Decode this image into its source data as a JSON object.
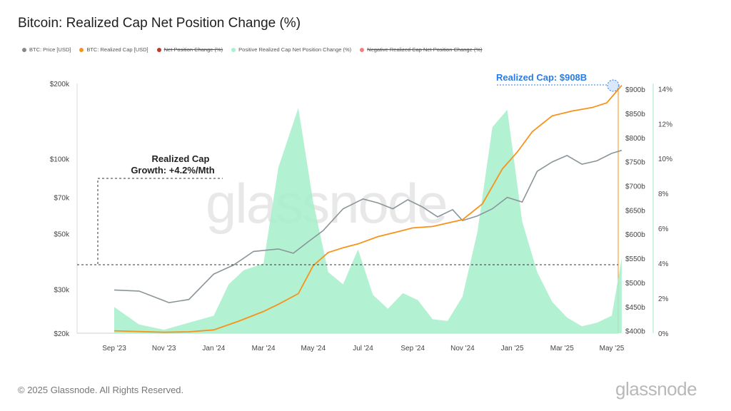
{
  "title": "Bitcoin: Realized Cap Net Position Change (%)",
  "legend": [
    {
      "label": "BTC: Price [USD]",
      "color": "#888888",
      "struck": false
    },
    {
      "label": "BTC: Realized Cap [USD]",
      "color": "#f7931a",
      "struck": false
    },
    {
      "label": "Net Position Change (%)",
      "color": "#c0392b",
      "struck": true
    },
    {
      "label": "Positive Realized Cap Net Position Change (%)",
      "color": "#a8f0cf",
      "struck": false
    },
    {
      "label": "Negative Realized Cap Net Position Change (%)",
      "color": "#f08080",
      "struck": true
    }
  ],
  "watermark": "glassnode",
  "annotations": {
    "growth_line1": "Realized Cap",
    "growth_line2": "Growth: +4.2%/Mth",
    "realized_cap_label": "Realized Cap: $908B"
  },
  "footer": "© 2025 Glassnode. All Rights Reserved.",
  "brand": "glassnode",
  "colors": {
    "price": "#8a9599",
    "realized_cap": "#f7931a",
    "positive_change": "#a6efcb",
    "annotation_blue": "#2a7be4"
  },
  "chart_data": {
    "type": "line",
    "x_ticks": [
      "Sep '23",
      "Nov '23",
      "Jan '24",
      "Mar '24",
      "May '24",
      "Jul '24",
      "Sep '24",
      "Nov '24",
      "Jan '25",
      "Mar '25",
      "May '25"
    ],
    "left_axis": {
      "scale": "log",
      "ticks": [
        "$20k",
        "$30k",
        "$50k",
        "$70k",
        "$100k",
        "$200k"
      ],
      "values": [
        20000,
        30000,
        50000,
        70000,
        100000,
        200000
      ],
      "ylim": [
        20000,
        200000
      ]
    },
    "mid_axis": {
      "ticks": [
        "$400b",
        "$450b",
        "$500b",
        "$550b",
        "$600b",
        "$650b",
        "$700b",
        "$750b",
        "$800b",
        "$850b",
        "$900b"
      ],
      "values": [
        400,
        450,
        500,
        550,
        600,
        650,
        700,
        750,
        800,
        850,
        900
      ],
      "ylim": [
        395,
        912
      ]
    },
    "right_axis": {
      "ticks": [
        "0%",
        "2%",
        "4%",
        "6%",
        "8%",
        "10%",
        "12%",
        "14%"
      ],
      "values": [
        0,
        2,
        4,
        6,
        8,
        10,
        12,
        14
      ],
      "ylim": [
        0,
        14.3
      ]
    },
    "series": [
      {
        "name": "BTC: Price [USD]",
        "axis": "left",
        "x": [
          0,
          0.5,
          1,
          1.1,
          1.5,
          2,
          2.4,
          2.8,
          3.3,
          3.6,
          3.9,
          4.2,
          4.6,
          5,
          5.3,
          5.6,
          5.9,
          6.2,
          6.5,
          6.8,
          7.0,
          7.3,
          7.6,
          7.9,
          8.2,
          8.5,
          8.8,
          9.1,
          9.4,
          9.7,
          10,
          10.2
        ],
        "values": [
          29800,
          29500,
          27000,
          26500,
          27300,
          34500,
          37500,
          42500,
          43500,
          41800,
          46500,
          51500,
          63000,
          69000,
          66500,
          63000,
          68500,
          64000,
          58500,
          62500,
          56500,
          59000,
          63000,
          70000,
          67000,
          89000,
          97000,
          103000,
          95000,
          98000,
          105000,
          108000
        ]
      },
      {
        "name": "BTC: Realized Cap [USD]",
        "axis": "mid",
        "x": [
          0,
          1,
          1.5,
          2,
          2.5,
          3,
          3.3,
          3.7,
          4.0,
          4.3,
          4.6,
          4.9,
          5.3,
          5.7,
          6.0,
          6.4,
          7.0,
          7.4,
          7.8,
          8.1,
          8.4,
          8.8,
          9.2,
          9.6,
          9.9,
          10.2
        ],
        "values": [
          400,
          397,
          398,
          402,
          420,
          440,
          455,
          477,
          535,
          562,
          572,
          580,
          595,
          605,
          613,
          616,
          630,
          663,
          735,
          770,
          812,
          845,
          855,
          862,
          872,
          908
        ]
      },
      {
        "name": "Positive Realized Cap Net Position Change (%)",
        "axis": "right",
        "type": "area",
        "x": [
          0,
          0.5,
          1,
          1.5,
          2,
          2.3,
          2.6,
          3.0,
          3.3,
          3.7,
          4.0,
          4.3,
          4.6,
          4.9,
          5.2,
          5.5,
          5.8,
          6.1,
          6.4,
          6.7,
          7.0,
          7.3,
          7.6,
          7.9,
          8.2,
          8.5,
          8.8,
          9.1,
          9.4,
          9.7,
          10.0,
          10.2
        ],
        "values": [
          1.5,
          0.5,
          0.2,
          0.6,
          1.0,
          2.8,
          3.6,
          4.0,
          9.5,
          12.9,
          7.5,
          3.5,
          2.8,
          4.8,
          2.2,
          1.4,
          2.3,
          1.9,
          0.8,
          0.7,
          2.1,
          5.8,
          11.8,
          12.8,
          6.4,
          3.5,
          1.8,
          0.9,
          0.4,
          0.6,
          1.0,
          4.3
        ]
      }
    ]
  }
}
